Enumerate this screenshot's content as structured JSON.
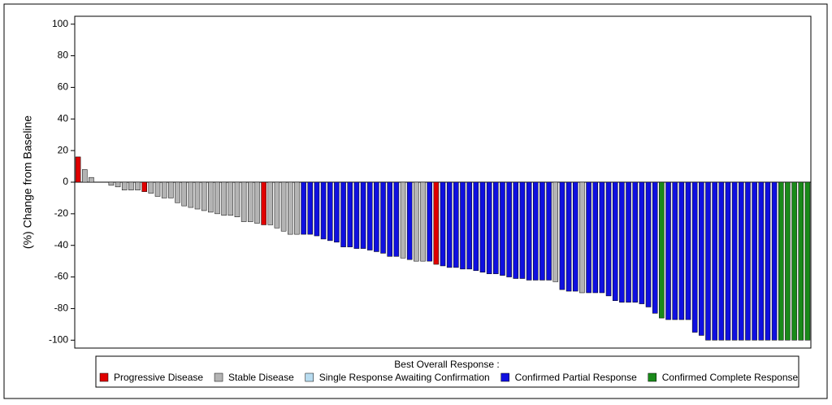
{
  "chart_data": {
    "type": "bar",
    "ylabel": "(%) Change from Baseline",
    "ylim": [
      -105,
      105
    ],
    "yticks": [
      -100,
      -80,
      -60,
      -40,
      -20,
      0,
      20,
      40,
      60,
      80,
      100
    ],
    "legend_title": "Best Overall Response :",
    "legend": "bottom",
    "series": [
      {
        "name": "Progressive Disease",
        "color": "#e00000",
        "values": [
          16,
          null,
          null,
          null,
          null,
          null,
          null,
          null,
          null,
          null,
          -6,
          null,
          null,
          null,
          null,
          null,
          null,
          null,
          null,
          null,
          null,
          null,
          null,
          null,
          null,
          null,
          null,
          null,
          -27,
          null,
          null,
          null,
          null,
          null,
          null,
          null,
          null,
          null,
          null,
          null,
          null,
          null,
          null,
          null,
          null,
          null,
          null,
          null,
          null,
          null,
          null,
          null,
          null,
          null,
          -52,
          null,
          null,
          null,
          null,
          null,
          null,
          null,
          null,
          null,
          null,
          null,
          null,
          null,
          null,
          null,
          null,
          null,
          null,
          null,
          null,
          null,
          null,
          null,
          null,
          null,
          null,
          null,
          null,
          null,
          null,
          null,
          null,
          null,
          null,
          null,
          null,
          null,
          null,
          null,
          null,
          null,
          null,
          null,
          null,
          null,
          null,
          null,
          null,
          null,
          null,
          null,
          null,
          null,
          null,
          null,
          null
        ]
      },
      {
        "name": "Stable Disease",
        "color": "#b4b4b4",
        "values": [
          null,
          8,
          3,
          0,
          0,
          -2,
          -3,
          -5,
          -5,
          -5,
          null,
          -7,
          -9,
          -10,
          -10,
          -13,
          -15,
          -16,
          -17,
          -18,
          -19,
          -20,
          -21,
          -21,
          -22,
          -25,
          -25,
          -26,
          null,
          -27,
          -29,
          -31,
          -33,
          -33,
          null,
          null,
          null,
          null,
          null,
          null,
          null,
          null,
          null,
          null,
          null,
          null,
          null,
          null,
          null,
          -48,
          null,
          -50,
          -50,
          null,
          null,
          null,
          null,
          null,
          null,
          null,
          null,
          null,
          null,
          null,
          null,
          null,
          null,
          null,
          null,
          null,
          null,
          null,
          -63,
          null,
          null,
          null,
          -70,
          null,
          null,
          null,
          null,
          null,
          null,
          null,
          null,
          null,
          null,
          null,
          null,
          null,
          null,
          null,
          null,
          null,
          null,
          null,
          null,
          null,
          null,
          null,
          null,
          null,
          null,
          null,
          null,
          null,
          null,
          null,
          null,
          null,
          null
        ]
      },
      {
        "name": "Single Response Awaiting Confirmation",
        "color": "#b8dcf0",
        "values": [
          null,
          null,
          null,
          null,
          null,
          null,
          null,
          null,
          null,
          null,
          null,
          null,
          null,
          null,
          null,
          null,
          null,
          null,
          null,
          null,
          null,
          null,
          null,
          null,
          null,
          null,
          null,
          null,
          null,
          null,
          null,
          null,
          null,
          null,
          null,
          null,
          null,
          null,
          null,
          null,
          null,
          null,
          null,
          null,
          null,
          null,
          null,
          null,
          null,
          null,
          null,
          null,
          null,
          null,
          null,
          null,
          null,
          null,
          null,
          null,
          null,
          null,
          null,
          null,
          null,
          null,
          null,
          null,
          null,
          null,
          null,
          null,
          null,
          null,
          null,
          null,
          null,
          null,
          null,
          null,
          null,
          null,
          null,
          null,
          null,
          null,
          null,
          null,
          null,
          null,
          null,
          null,
          null,
          null,
          null,
          null,
          null,
          null,
          null,
          null,
          null,
          null,
          null,
          null,
          null,
          null,
          null,
          null,
          null,
          null,
          null
        ]
      },
      {
        "name": "Confirmed Partial Response",
        "color": "#1010e0",
        "values": [
          null,
          null,
          null,
          null,
          null,
          null,
          null,
          null,
          null,
          null,
          null,
          null,
          null,
          null,
          null,
          null,
          null,
          null,
          null,
          null,
          null,
          null,
          null,
          null,
          null,
          null,
          null,
          null,
          null,
          null,
          null,
          null,
          null,
          null,
          -33,
          -33,
          -34,
          -36,
          -37,
          -38,
          -41,
          -41,
          -42,
          -42,
          -43,
          -44,
          -45,
          -47,
          -47,
          null,
          -49,
          null,
          null,
          -50,
          null,
          -53,
          -54,
          -54,
          -55,
          -55,
          -56,
          -57,
          -58,
          -58,
          -59,
          -60,
          -61,
          -61,
          -62,
          -62,
          -62,
          -62,
          null,
          -68,
          -69,
          -69,
          null,
          -70,
          -70,
          -70,
          -72,
          -75,
          -76,
          -76,
          -76,
          -77,
          -79,
          -83,
          null,
          -87,
          -87,
          -87,
          -87,
          -95,
          -97,
          -100,
          -100,
          -100,
          -100,
          -100,
          -100,
          -100,
          -100,
          -100,
          -100,
          -100,
          null,
          null,
          null,
          null,
          null
        ]
      },
      {
        "name": "Confirmed Complete Response",
        "color": "#1a8a1a",
        "values": [
          null,
          null,
          null,
          null,
          null,
          null,
          null,
          null,
          null,
          null,
          null,
          null,
          null,
          null,
          null,
          null,
          null,
          null,
          null,
          null,
          null,
          null,
          null,
          null,
          null,
          null,
          null,
          null,
          null,
          null,
          null,
          null,
          null,
          null,
          null,
          null,
          null,
          null,
          null,
          null,
          null,
          null,
          null,
          null,
          null,
          null,
          null,
          null,
          null,
          null,
          null,
          null,
          null,
          null,
          null,
          null,
          null,
          null,
          null,
          null,
          null,
          null,
          null,
          null,
          null,
          null,
          null,
          null,
          null,
          null,
          null,
          null,
          null,
          null,
          null,
          null,
          null,
          null,
          null,
          null,
          null,
          null,
          null,
          null,
          null,
          null,
          null,
          null,
          -86,
          null,
          null,
          null,
          null,
          null,
          null,
          null,
          null,
          null,
          null,
          null,
          null,
          null,
          null,
          null,
          null,
          null,
          -100,
          -100,
          -100,
          -100,
          -100
        ]
      }
    ]
  }
}
